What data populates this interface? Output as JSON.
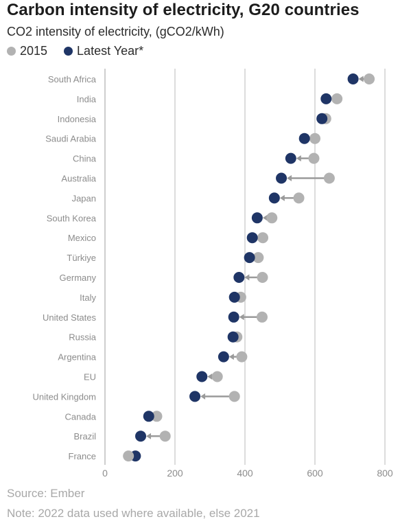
{
  "title": "Carbon intensity of electricity, G20 countries",
  "subtitle": "CO2 intensity of electricity, (gCO2/kWh)",
  "legend": [
    {
      "label": "2015",
      "color": "#b2b2b2"
    },
    {
      "label": "Latest Year*",
      "color": "#1f3566"
    }
  ],
  "footer": {
    "source": "Source: Ember",
    "note": "Note: 2022 data used where available, else 2021"
  },
  "chart_data": {
    "type": "dumbbell",
    "categories": [
      "South Africa",
      "India",
      "Indonesia",
      "Saudi Arabia",
      "China",
      "Australia",
      "Japan",
      "South Korea",
      "Mexico",
      "Türkiye",
      "Germany",
      "Italy",
      "United States",
      "Russia",
      "Argentina",
      "EU",
      "United Kingdom",
      "Canada",
      "Brazil",
      "France"
    ],
    "series": [
      {
        "name": "2015",
        "color": "#b2b2b2",
        "values": [
          755,
          663,
          631,
          600,
          597,
          641,
          554,
          477,
          451,
          438,
          450,
          388,
          449,
          377,
          391,
          321,
          370,
          148,
          172,
          67
        ]
      },
      {
        "name": "Latest Year*",
        "color": "#1f3566",
        "values": [
          709,
          632,
          620,
          570,
          531,
          504,
          484,
          435,
          421,
          413,
          383,
          370,
          368,
          366,
          339,
          277,
          257,
          125,
          102,
          87
        ]
      }
    ],
    "x_ticks": [
      0,
      200,
      400,
      600,
      800
    ],
    "xlim": [
      0,
      800
    ],
    "grid": true,
    "legend_position": "top-left"
  }
}
